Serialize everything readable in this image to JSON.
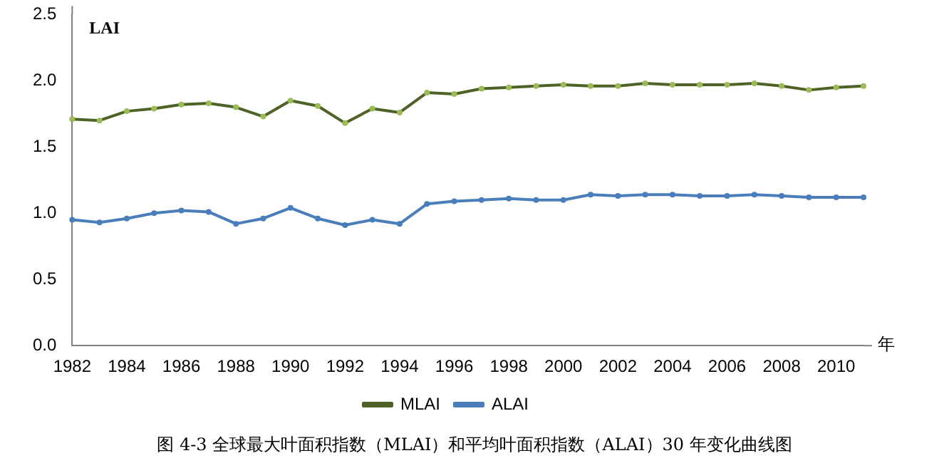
{
  "chart_data": {
    "type": "line",
    "title": "图 4-3 全球最大叶面积指数（MLAI）和平均叶面积指数（ALAI）30 年变化曲线图",
    "ylabel": "LAI",
    "xlabel": "年",
    "categories": [
      "1982",
      null,
      "1984",
      null,
      "1986",
      null,
      "1988",
      null,
      "1990",
      null,
      "1992",
      null,
      "1994",
      null,
      "1996",
      null,
      "1998",
      null,
      "2000",
      null,
      "2002",
      null,
      "2004",
      null,
      "2006",
      null,
      "2008",
      null,
      "2010",
      null
    ],
    "series": [
      {
        "name": "MLAI",
        "color": "#4f6228",
        "values": [
          1.71,
          1.7,
          1.77,
          1.79,
          1.82,
          1.83,
          1.8,
          1.73,
          1.85,
          1.81,
          1.68,
          1.79,
          1.76,
          1.91,
          1.9,
          1.94,
          1.95,
          1.96,
          1.97,
          1.96,
          1.96,
          1.98,
          1.97,
          1.97,
          1.97,
          1.98,
          1.96,
          1.93,
          1.95,
          1.96
        ]
      },
      {
        "name": "ALAI",
        "color": "#4a7ebb",
        "values": [
          0.95,
          0.93,
          0.96,
          1.0,
          1.02,
          1.01,
          0.92,
          0.96,
          1.04,
          0.96,
          0.91,
          0.95,
          0.92,
          1.07,
          1.09,
          1.1,
          1.11,
          1.1,
          1.1,
          1.14,
          1.13,
          1.14,
          1.14,
          1.13,
          1.13,
          1.14,
          1.13,
          1.12,
          1.12,
          1.12
        ]
      }
    ],
    "ylim": [
      0,
      2.5
    ],
    "yticks": [
      {
        "value": 0,
        "label": "0.0"
      },
      {
        "value": 0.5,
        "label": "0.5"
      },
      {
        "value": 1,
        "label": "1.0"
      },
      {
        "value": 1.5,
        "label": "1.5"
      },
      {
        "value": 2,
        "label": "2.0"
      },
      {
        "value": 2.5,
        "label": "2.5"
      }
    ],
    "grid": false,
    "legend": "bottom",
    "marker": "circle",
    "line_style": "solid"
  }
}
